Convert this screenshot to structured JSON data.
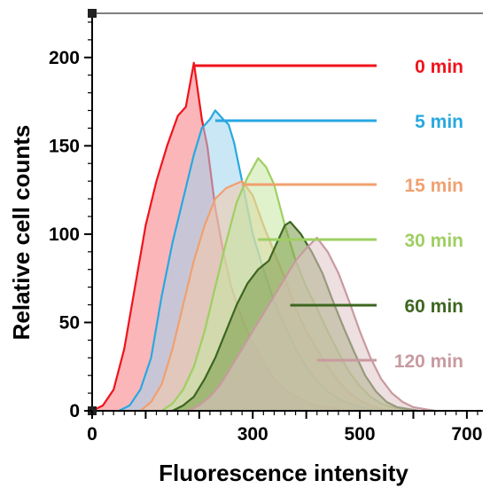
{
  "chart_data": {
    "type": "area",
    "title": "",
    "xlabel": "Fluorescence intensity",
    "ylabel": "Relative cell counts",
    "xlim": [
      0,
      730
    ],
    "ylim": [
      0,
      225
    ],
    "xticks": [
      0,
      300,
      500,
      700
    ],
    "yticks": [
      0,
      50,
      100,
      150,
      200
    ],
    "grid": false,
    "legend": "inline labels at right",
    "series": [
      {
        "name": "0 min",
        "color": "#f0131b",
        "fill": "#f87a80",
        "peak_x": 190,
        "peak_y": 197,
        "points": [
          [
            0,
            0
          ],
          [
            20,
            3
          ],
          [
            40,
            12
          ],
          [
            60,
            35
          ],
          [
            80,
            70
          ],
          [
            100,
            105
          ],
          [
            120,
            130
          ],
          [
            140,
            150
          ],
          [
            160,
            167
          ],
          [
            175,
            172
          ],
          [
            190,
            197
          ],
          [
            205,
            165
          ],
          [
            215,
            150
          ],
          [
            230,
            115
          ],
          [
            245,
            90
          ],
          [
            260,
            70
          ],
          [
            280,
            52
          ],
          [
            300,
            38
          ],
          [
            320,
            28
          ],
          [
            340,
            18
          ],
          [
            360,
            12
          ],
          [
            380,
            8
          ],
          [
            400,
            5
          ],
          [
            420,
            3
          ],
          [
            440,
            2
          ],
          [
            460,
            1
          ],
          [
            480,
            0
          ]
        ]
      },
      {
        "name": "5 min",
        "color": "#28a8e0",
        "fill": "#9fd4ee",
        "peak_x": 230,
        "peak_y": 170,
        "points": [
          [
            50,
            0
          ],
          [
            70,
            3
          ],
          [
            90,
            12
          ],
          [
            110,
            30
          ],
          [
            130,
            65
          ],
          [
            150,
            95
          ],
          [
            170,
            120
          ],
          [
            190,
            145
          ],
          [
            205,
            160
          ],
          [
            220,
            165
          ],
          [
            230,
            170
          ],
          [
            245,
            165
          ],
          [
            255,
            162
          ],
          [
            265,
            152
          ],
          [
            280,
            130
          ],
          [
            300,
            100
          ],
          [
            320,
            80
          ],
          [
            340,
            62
          ],
          [
            360,
            48
          ],
          [
            380,
            35
          ],
          [
            400,
            25
          ],
          [
            420,
            17
          ],
          [
            440,
            11
          ],
          [
            460,
            7
          ],
          [
            480,
            4
          ],
          [
            500,
            2
          ],
          [
            520,
            1
          ],
          [
            540,
            0
          ]
        ]
      },
      {
        "name": "15 min",
        "color": "#f0a070",
        "fill": "#f5c8a8",
        "peak_x": 280,
        "peak_y": 130,
        "points": [
          [
            90,
            0
          ],
          [
            110,
            5
          ],
          [
            130,
            15
          ],
          [
            150,
            35
          ],
          [
            170,
            60
          ],
          [
            190,
            85
          ],
          [
            210,
            105
          ],
          [
            230,
            120
          ],
          [
            250,
            126
          ],
          [
            265,
            128
          ],
          [
            280,
            130
          ],
          [
            300,
            122
          ],
          [
            320,
            105
          ],
          [
            340,
            90
          ],
          [
            360,
            75
          ],
          [
            380,
            58
          ],
          [
            400,
            45
          ],
          [
            420,
            35
          ],
          [
            440,
            25
          ],
          [
            460,
            17
          ],
          [
            480,
            10
          ],
          [
            500,
            6
          ],
          [
            520,
            3
          ],
          [
            540,
            1
          ],
          [
            560,
            0
          ]
        ]
      },
      {
        "name": "30 min",
        "color": "#9ecf62",
        "fill": "#c5e8a0",
        "peak_x": 310,
        "peak_y": 143,
        "points": [
          [
            130,
            0
          ],
          [
            150,
            4
          ],
          [
            170,
            12
          ],
          [
            190,
            25
          ],
          [
            210,
            45
          ],
          [
            230,
            70
          ],
          [
            250,
            95
          ],
          [
            270,
            118
          ],
          [
            290,
            132
          ],
          [
            310,
            143
          ],
          [
            325,
            138
          ],
          [
            340,
            128
          ],
          [
            360,
            105
          ],
          [
            380,
            85
          ],
          [
            400,
            70
          ],
          [
            420,
            58
          ],
          [
            440,
            45
          ],
          [
            460,
            33
          ],
          [
            480,
            22
          ],
          [
            500,
            14
          ],
          [
            520,
            8
          ],
          [
            540,
            4
          ],
          [
            560,
            2
          ],
          [
            580,
            1
          ],
          [
            600,
            0
          ]
        ]
      },
      {
        "name": "60 min",
        "color": "#3d6620",
        "fill": "#7a9a48",
        "peak_x": 370,
        "peak_y": 107,
        "points": [
          [
            150,
            0
          ],
          [
            170,
            3
          ],
          [
            190,
            8
          ],
          [
            210,
            18
          ],
          [
            230,
            30
          ],
          [
            250,
            45
          ],
          [
            270,
            60
          ],
          [
            290,
            72
          ],
          [
            310,
            80
          ],
          [
            330,
            85
          ],
          [
            345,
            95
          ],
          [
            360,
            105
          ],
          [
            370,
            107
          ],
          [
            390,
            100
          ],
          [
            410,
            90
          ],
          [
            430,
            78
          ],
          [
            450,
            62
          ],
          [
            470,
            47
          ],
          [
            490,
            33
          ],
          [
            510,
            20
          ],
          [
            530,
            11
          ],
          [
            550,
            5
          ],
          [
            570,
            2
          ],
          [
            590,
            1
          ],
          [
            610,
            0
          ]
        ]
      },
      {
        "name": "120 min",
        "color": "#c89aa0",
        "fill": "#e0c4c8",
        "peak_x": 420,
        "peak_y": 98,
        "points": [
          [
            180,
            0
          ],
          [
            200,
            3
          ],
          [
            220,
            8
          ],
          [
            240,
            15
          ],
          [
            260,
            25
          ],
          [
            280,
            35
          ],
          [
            300,
            45
          ],
          [
            320,
            55
          ],
          [
            340,
            65
          ],
          [
            360,
            75
          ],
          [
            380,
            85
          ],
          [
            400,
            92
          ],
          [
            420,
            98
          ],
          [
            440,
            90
          ],
          [
            460,
            78
          ],
          [
            480,
            62
          ],
          [
            500,
            45
          ],
          [
            520,
            30
          ],
          [
            540,
            18
          ],
          [
            560,
            10
          ],
          [
            580,
            5
          ],
          [
            600,
            2
          ],
          [
            620,
            1
          ],
          [
            640,
            0
          ]
        ]
      }
    ]
  }
}
